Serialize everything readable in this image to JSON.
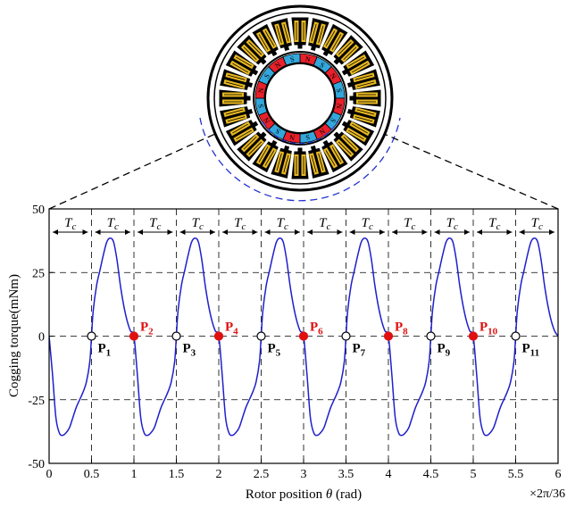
{
  "chart_data": {
    "type": "line",
    "xlabel_prefix": "Rotor position ",
    "xlabel_symbol": "θ",
    "xlabel_suffix": " (rad)",
    "x_unit_note": "×2π/36",
    "ylabel": "Cogging torque(mNm)",
    "xlim": [
      0,
      6
    ],
    "ylim": [
      -50,
      50
    ],
    "x_ticks": [
      0,
      0.5,
      1,
      1.5,
      2,
      2.5,
      3,
      3.5,
      4,
      4.5,
      5,
      5.5,
      6
    ],
    "x_tick_labels": [
      "0",
      "0.5",
      "1",
      "1.5",
      "2",
      "2.5",
      "3",
      "3.5",
      "4",
      "4.5",
      "5",
      "5.5",
      "6"
    ],
    "y_ticks": [
      -50,
      -25,
      0,
      25,
      50
    ],
    "y_tick_labels": [
      "-50",
      "-25",
      "0",
      "25",
      "50"
    ],
    "grid": "dashed",
    "period_label_main": "T",
    "period_label_sub": "c",
    "period_count": 12,
    "series": [
      {
        "color": "#1f1fcc",
        "one_period_x": [
          0.0,
          0.04,
          0.08,
          0.12,
          0.16,
          0.2,
          0.24,
          0.28,
          0.32,
          0.36,
          0.4,
          0.44,
          0.48,
          0.5,
          0.52,
          0.56,
          0.6,
          0.64,
          0.68,
          0.72,
          0.76,
          0.8,
          0.84,
          0.88,
          0.92,
          0.96,
          1.0
        ],
        "one_period_y": [
          0,
          -15,
          -32,
          -38,
          -39,
          -38,
          -36,
          -32,
          -28,
          -25,
          -22,
          -18,
          -10,
          0,
          10,
          20,
          26,
          32,
          37,
          38.5,
          37,
          30,
          20,
          12,
          6,
          2,
          0
        ]
      }
    ],
    "points": [
      {
        "x": 0.5,
        "main": "P",
        "sub": "1",
        "style": "open",
        "color": "#000000"
      },
      {
        "x": 1.0,
        "main": "P",
        "sub": "2",
        "style": "filled",
        "color": "#e01010"
      },
      {
        "x": 1.5,
        "main": "P",
        "sub": "3",
        "style": "open",
        "color": "#000000"
      },
      {
        "x": 2.0,
        "main": "P",
        "sub": "4",
        "style": "filled",
        "color": "#e01010"
      },
      {
        "x": 2.5,
        "main": "P",
        "sub": "5",
        "style": "open",
        "color": "#000000"
      },
      {
        "x": 3.0,
        "main": "P",
        "sub": "6",
        "style": "filled",
        "color": "#e01010"
      },
      {
        "x": 3.5,
        "main": "P",
        "sub": "7",
        "style": "open",
        "color": "#000000"
      },
      {
        "x": 4.0,
        "main": "P",
        "sub": "8",
        "style": "filled",
        "color": "#e01010"
      },
      {
        "x": 4.5,
        "main": "P",
        "sub": "9",
        "style": "open",
        "color": "#000000"
      },
      {
        "x": 5.0,
        "main": "P",
        "sub": "10",
        "style": "filled",
        "color": "#e01010"
      },
      {
        "x": 5.5,
        "main": "P",
        "sub": "11",
        "style": "open",
        "color": "#000000"
      }
    ]
  },
  "motor_diagram": {
    "slot_count": 24,
    "magnet_count": 16,
    "magnet_labels": [
      "N",
      "S",
      "N",
      "S",
      "N",
      "S",
      "N",
      "S",
      "N",
      "S",
      "N",
      "S",
      "N",
      "S",
      "N",
      "S"
    ],
    "magnet_colors": [
      "#e8202a",
      "#33a7dc"
    ],
    "slot_fill": "#e8b820",
    "arc_color": "#2233cc"
  }
}
